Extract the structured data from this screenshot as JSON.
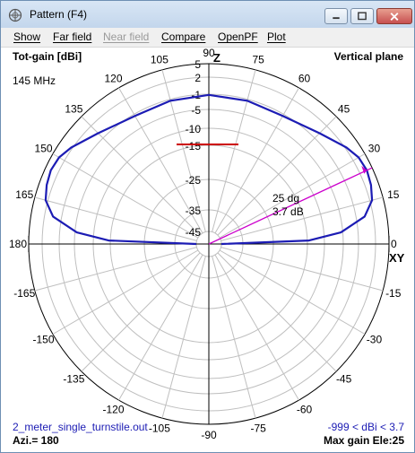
{
  "window": {
    "title": "Pattern   (F4)"
  },
  "menu": [
    {
      "label": "Show",
      "enabled": true
    },
    {
      "label": "Far field",
      "enabled": true
    },
    {
      "label": "Near field",
      "enabled": false
    },
    {
      "label": "Compare",
      "enabled": true
    },
    {
      "label": "OpenPF",
      "enabled": true
    },
    {
      "label": "Plot",
      "enabled": true
    }
  ],
  "plot": {
    "gain_label": "Tot-gain [dBi]",
    "plane_label": "Vertical plane",
    "frequency": "145 MHz",
    "z_label": "Z",
    "xy_label": "XY",
    "file_name": "2_meter_single_turnstile.out",
    "azimuth": "Azi.= 180",
    "gain_range": "-999 < dBi < 3.7",
    "max_gain_elevation": "Max gain Ele:25",
    "cursor_angle": "25 dg",
    "cursor_gain": "3.7 dB",
    "angle_labels": [
      "0",
      "15",
      "30",
      "45",
      "60",
      "75",
      "90",
      "105",
      "120",
      "135",
      "150",
      "165",
      "180",
      "-165",
      "-150",
      "-135",
      "-120",
      "-105",
      "-90",
      "-75",
      "-60",
      "-45",
      "-30",
      "-15"
    ],
    "ring_labels": [
      "5",
      "2",
      "-1",
      "-5",
      "-10",
      "-15",
      "-25",
      "-35",
      "-45"
    ],
    "colors": {
      "pattern": "#1c1cb4",
      "cursor": "#cc00cc",
      "marker": "#cc0000",
      "grid": "#bfbfbf"
    }
  },
  "chart_data": {
    "type": "polar",
    "title": "Tot-gain [dBi]",
    "subtitle": "Vertical plane",
    "series": [
      {
        "name": "Tot-gain",
        "elevation_deg": [
          0,
          2,
          5,
          10,
          15,
          20,
          25,
          30,
          35,
          45,
          60,
          75,
          90,
          105,
          120,
          135,
          145,
          150,
          155,
          160,
          165,
          170,
          175,
          178,
          180
        ],
        "gain_dbi": [
          -45,
          -14.5,
          -5.5,
          0.5,
          2.5,
          3.3,
          3.7,
          3.4,
          2.3,
          0.2,
          -1.5,
          -1.4,
          -1.2,
          -1.4,
          -1.5,
          0.2,
          2.3,
          3.4,
          3.7,
          3.3,
          2.5,
          0.5,
          -5.5,
          -14.5,
          -45
        ]
      }
    ],
    "cursor": {
      "elevation_deg": 25,
      "gain_dbi": 3.7
    },
    "rlim_dbi": [
      -45,
      5
    ]
  }
}
